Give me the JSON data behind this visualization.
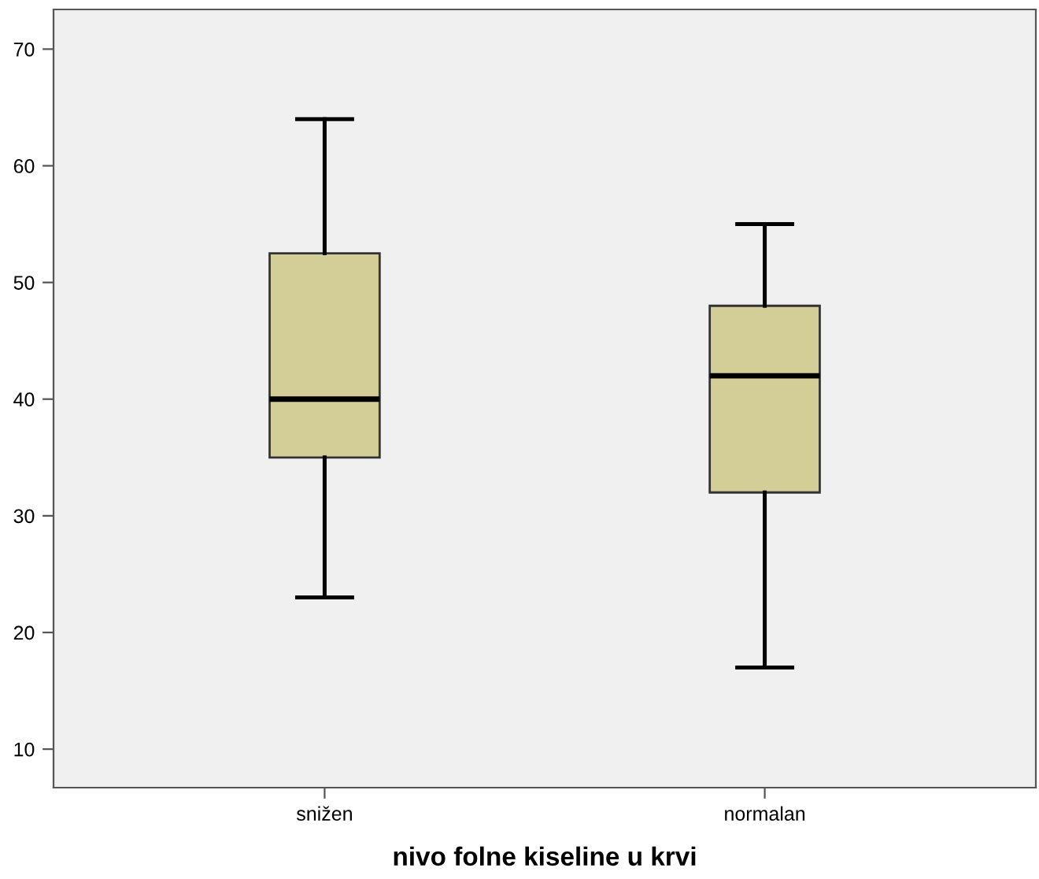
{
  "chart_data": {
    "type": "box",
    "xlabel": "nivo folne kiseline u krvi",
    "categories": [
      "snižen",
      "normalan"
    ],
    "color": "#d3ce98",
    "boxes": [
      {
        "low": 23,
        "q1": 35,
        "median": 40,
        "q3": 52.5,
        "high": 64
      },
      {
        "low": 17,
        "q1": 32,
        "median": 42,
        "q3": 48,
        "high": 55
      }
    ],
    "ylim": [
      6.7,
      73.4
    ],
    "yticks": [
      10,
      20,
      30,
      40,
      50,
      60,
      70
    ],
    "grid": false,
    "legend": false
  }
}
